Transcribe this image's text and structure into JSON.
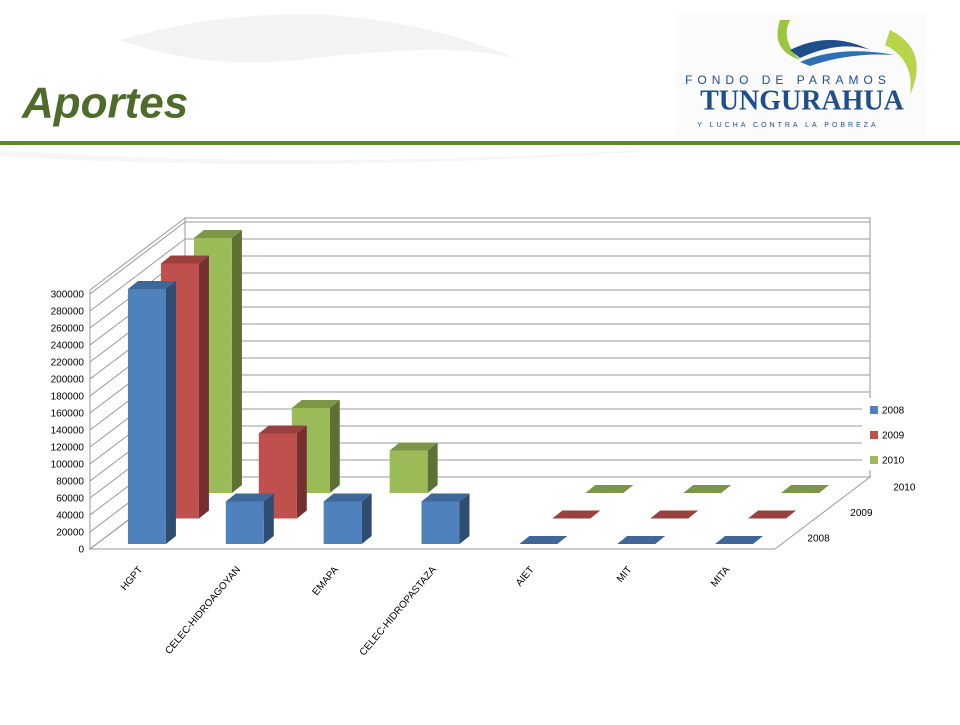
{
  "header": {
    "title": "Aportes",
    "logo": {
      "line1": "FONDO DE PARAMOS",
      "line2": "TUNGURAHUA",
      "line3": "Y LUCHA CONTRA LA POBREZA"
    }
  },
  "chart_data": {
    "type": "bar3d",
    "categories": [
      "HGPT",
      "CELEC-HIDROAGOYAN",
      "EMAPA",
      "CELEC-HIDROPASTAZA",
      "AIET",
      "MIT",
      "MITA"
    ],
    "series": [
      {
        "name": "2008",
        "color": "#4f81bd",
        "values": [
          300000,
          50000,
          50000,
          50000,
          0,
          0,
          0
        ]
      },
      {
        "name": "2009",
        "color": "#c0504d",
        "values": [
          300000,
          100000,
          null,
          null,
          0,
          0,
          0
        ]
      },
      {
        "name": "2010",
        "color": "#9bbb59",
        "values": [
          300000,
          100000,
          50000,
          null,
          0,
          0,
          0
        ]
      }
    ],
    "ylim": [
      0,
      300000
    ],
    "yticks": [
      0,
      20000,
      40000,
      60000,
      80000,
      100000,
      120000,
      140000,
      160000,
      180000,
      200000,
      220000,
      240000,
      260000,
      280000,
      300000
    ],
    "grid": true,
    "legend": "right"
  }
}
